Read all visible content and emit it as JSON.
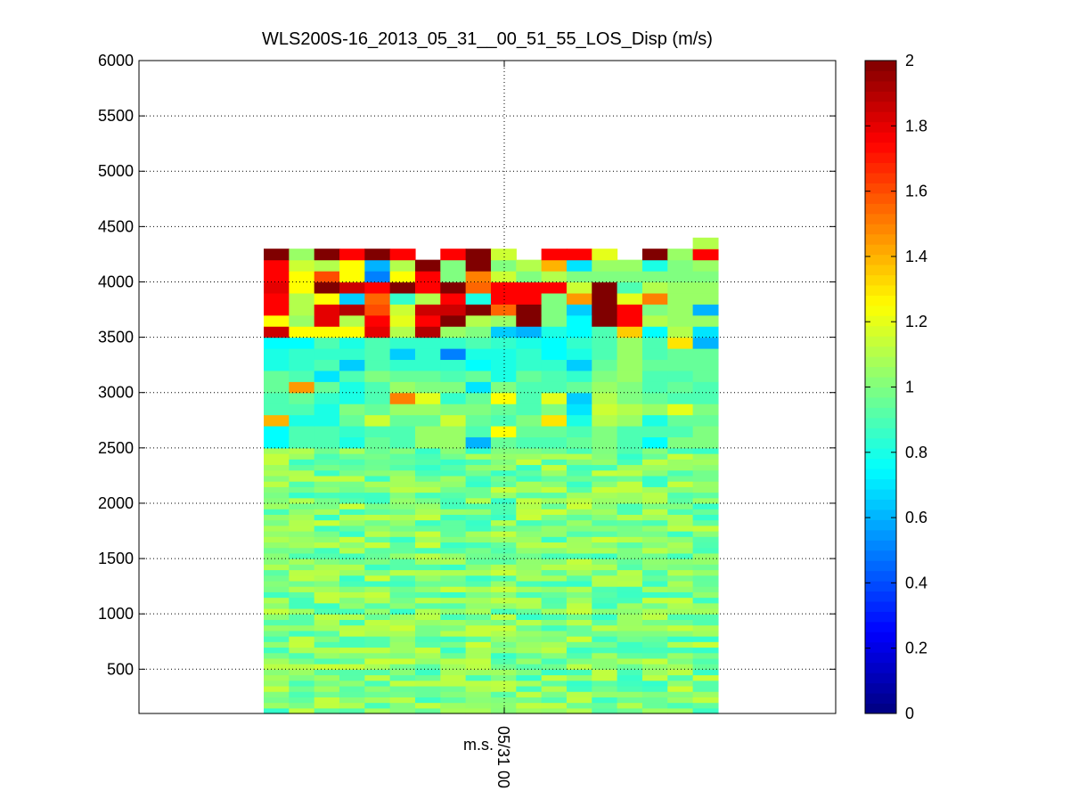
{
  "chart_data": {
    "type": "heatmap",
    "title": "WLS200S-16_2013_05_31__00_51_55_LOS_Disp (m/s)",
    "xlabel": "m.s.",
    "ylabel": "",
    "x_ticks": [
      "05/31 00"
    ],
    "y_ticks": [
      500,
      1000,
      1500,
      2000,
      2500,
      3000,
      3500,
      4000,
      4500,
      5000,
      5500,
      6000
    ],
    "ylim": [
      100,
      6000
    ],
    "grid": true,
    "colorbar": {
      "colormap": "jet",
      "range": [
        0,
        2
      ],
      "ticks": [
        "0",
        "0.2",
        "0.4",
        "0.6",
        "0.8",
        "1",
        "1.2",
        "1.4",
        "1.6",
        "1.8",
        "2"
      ]
    },
    "columns": 18,
    "low_rows": {
      "y_start": 100,
      "y_end": 2500,
      "step": 50,
      "typical_value": 0.95,
      "range": [
        0.85,
        1.15
      ]
    },
    "high_rows": {
      "y_start": 2500,
      "step": 100,
      "values": [
        [
          0.75,
          0.9,
          0.9,
          0.8,
          0.95,
          0.9,
          1.05,
          1.05,
          0.6,
          0.95,
          0.9,
          0.9,
          0.95,
          1.0,
          0.9,
          0.75,
          1.0,
          1.0
        ],
        [
          0.75,
          0.9,
          0.9,
          0.85,
          0.9,
          0.9,
          1.05,
          1.05,
          0.9,
          1.25,
          0.95,
          0.95,
          0.9,
          1.0,
          0.9,
          0.9,
          0.9,
          1.0
        ],
        [
          1.4,
          0.8,
          0.8,
          0.95,
          1.15,
          0.95,
          0.95,
          1.15,
          0.95,
          0.9,
          1.0,
          1.3,
          0.8,
          1.1,
          1.05,
          0.8,
          0.95,
          0.95
        ],
        [
          0.9,
          0.9,
          0.8,
          1.0,
          0.95,
          1.05,
          1.05,
          1.0,
          1.0,
          0.95,
          0.9,
          1.0,
          0.7,
          1.15,
          1.1,
          1.05,
          1.2,
          1.0
        ],
        [
          0.9,
          0.95,
          0.85,
          0.8,
          0.9,
          1.5,
          1.2,
          0.85,
          0.95,
          1.25,
          0.9,
          1.2,
          0.65,
          1.1,
          1.0,
          0.95,
          0.9,
          0.9
        ],
        [
          0.95,
          1.45,
          0.95,
          0.8,
          0.9,
          1.05,
          1.0,
          1.0,
          0.7,
          1.0,
          0.9,
          0.9,
          0.95,
          1.05,
          1.0,
          0.9,
          0.95,
          0.9
        ],
        [
          0.95,
          0.9,
          0.7,
          0.9,
          1.0,
          0.95,
          0.95,
          0.9,
          0.95,
          0.8,
          0.95,
          0.9,
          0.85,
          1.0,
          1.05,
          0.9,
          0.9,
          0.95
        ],
        [
          0.8,
          0.85,
          0.9,
          0.65,
          0.9,
          0.85,
          0.85,
          0.85,
          0.75,
          0.8,
          0.85,
          0.85,
          0.65,
          0.95,
          1.05,
          0.95,
          0.95,
          0.95
        ],
        [
          0.8,
          0.85,
          0.85,
          0.85,
          0.9,
          0.65,
          0.85,
          0.5,
          0.8,
          0.8,
          0.85,
          0.75,
          0.8,
          0.9,
          1.05,
          0.9,
          0.95,
          0.95
        ],
        [
          0.75,
          0.75,
          0.9,
          0.8,
          0.9,
          0.85,
          0.85,
          0.85,
          0.9,
          0.85,
          0.8,
          0.75,
          0.85,
          0.9,
          1.05,
          0.9,
          1.3,
          0.6
        ],
        [
          1.85,
          1.25,
          1.25,
          1.25,
          1.8,
          1.1,
          1.9,
          1.05,
          1.0,
          0.65,
          0.6,
          0.8,
          0.75,
          0.9,
          1.35,
          0.75,
          1.1,
          0.7
        ],
        [
          1.25,
          1.05,
          1.8,
          1.1,
          1.75,
          1.2,
          1.75,
          2.0,
          1.1,
          1.05,
          2.0,
          1.0,
          0.75,
          2.0,
          1.75,
          1.1,
          1.05,
          1.05
        ],
        [
          1.75,
          1.1,
          1.8,
          1.9,
          1.6,
          1.15,
          1.85,
          1.85,
          2.0,
          1.55,
          2.0,
          1.0,
          0.65,
          2.0,
          1.75,
          1.0,
          1.05,
          0.6
        ],
        [
          1.75,
          1.1,
          1.25,
          0.65,
          1.55,
          0.85,
          1.1,
          1.75,
          0.8,
          1.75,
          1.75,
          1.0,
          1.45,
          2.0,
          1.2,
          1.5,
          1.05,
          1.05
        ],
        [
          1.8,
          1.25,
          2.0,
          1.85,
          1.75,
          2.0,
          1.75,
          2.0,
          1.55,
          1.75,
          1.75,
          1.75,
          1.15,
          2.0,
          0.9,
          1.1,
          1.05,
          1.05
        ],
        [
          1.75,
          1.25,
          1.6,
          1.25,
          0.5,
          1.25,
          1.75,
          1.0,
          1.5,
          1.15,
          1.0,
          1.1,
          1.0,
          1.0,
          1.0,
          1.0,
          1.0,
          1.0
        ],
        [
          1.75,
          1.15,
          1.1,
          1.25,
          0.6,
          1.1,
          2.0,
          1.0,
          2.0,
          1.0,
          1.1,
          1.4,
          0.7,
          1.05,
          1.05,
          0.8,
          1.0,
          1.05
        ],
        [
          2.0,
          1.05,
          2.0,
          1.75,
          2.0,
          1.75,
          null,
          1.75,
          2.0,
          1.15,
          null,
          1.75,
          1.75,
          1.2,
          null,
          2.0,
          1.05,
          1.75
        ],
        [
          null,
          null,
          null,
          null,
          null,
          null,
          null,
          null,
          null,
          null,
          null,
          null,
          null,
          null,
          null,
          null,
          null,
          1.1
        ]
      ]
    }
  }
}
